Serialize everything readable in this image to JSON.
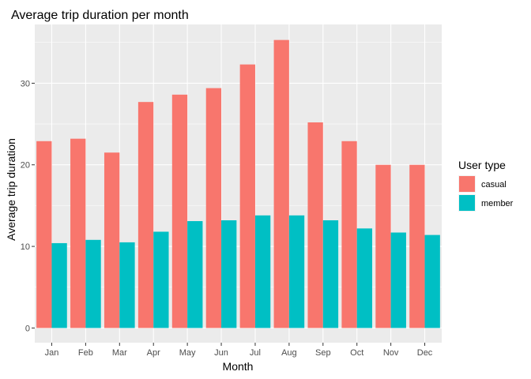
{
  "chart_data": {
    "type": "bar",
    "title": "Average trip duration per month",
    "xlabel": "Month",
    "ylabel": "Average trip duration",
    "categories": [
      "Jan",
      "Feb",
      "Mar",
      "Apr",
      "May",
      "Jun",
      "Jul",
      "Aug",
      "Sep",
      "Oct",
      "Nov",
      "Dec"
    ],
    "series": [
      {
        "name": "casual",
        "color": "#F8766D",
        "values": [
          22.9,
          23.2,
          21.5,
          27.7,
          28.6,
          29.4,
          32.3,
          35.3,
          25.2,
          22.9,
          20.0,
          20.0
        ]
      },
      {
        "name": "member",
        "color": "#00BFC4",
        "values": [
          10.4,
          10.8,
          10.5,
          11.8,
          13.1,
          13.2,
          13.8,
          13.8,
          13.2,
          12.2,
          11.7,
          11.4
        ]
      }
    ],
    "ylim": [
      -1.8,
      37.2
    ],
    "yticks": [
      0,
      10,
      20,
      30
    ],
    "grid": true,
    "panel_background": "#EBEBEB",
    "legend": {
      "title": "User type",
      "position": "right"
    }
  }
}
